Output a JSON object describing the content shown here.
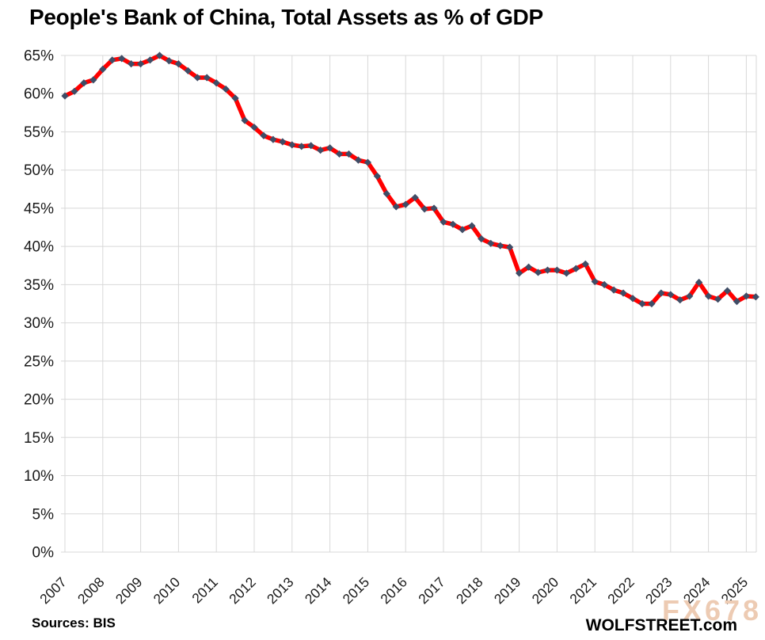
{
  "title": "People's Bank of China, Total Assets as % of GDP",
  "footer": {
    "sources": "Sources: BIS",
    "brand": "WOLFSTREET.com",
    "watermark": "FX678"
  },
  "colors": {
    "line": "#FF0000",
    "marker": "#3F4D66",
    "grid": "#D8D8D8",
    "axis_text": "#1A1A1A",
    "watermark": "#EDCBB3"
  },
  "chart_data": {
    "type": "line",
    "title": "People's Bank of China, Total Assets as % of GDP",
    "x_frequency": "quarterly",
    "x_start": "2007Q1",
    "x_end": "2025Q2",
    "x_tick_years": [
      "2007",
      "2008",
      "2009",
      "2010",
      "2011",
      "2012",
      "2013",
      "2014",
      "2015",
      "2016",
      "2017",
      "2018",
      "2019",
      "2020",
      "2021",
      "2022",
      "2023",
      "2024",
      "2025"
    ],
    "y_ticks": [
      "0%",
      "5%",
      "10%",
      "15%",
      "20%",
      "25%",
      "30%",
      "35%",
      "40%",
      "45%",
      "50%",
      "55%",
      "60%",
      "65%"
    ],
    "ylim": [
      0,
      65
    ],
    "grid": true,
    "legend_position": "none",
    "series": [
      {
        "name": "PBOC total assets as % of GDP",
        "color": "#FF0000",
        "marker": "diamond",
        "marker_color": "#3F4D66",
        "values": [
          59.7,
          60.3,
          61.4,
          61.8,
          63.2,
          64.4,
          64.6,
          63.9,
          63.9,
          64.4,
          65.0,
          64.3,
          63.9,
          63.0,
          62.1,
          62.1,
          61.4,
          60.6,
          59.4,
          56.5,
          55.6,
          54.5,
          54.0,
          53.7,
          53.3,
          53.1,
          53.2,
          52.6,
          52.9,
          52.1,
          52.1,
          51.3,
          51.0,
          49.2,
          46.9,
          45.2,
          45.5,
          46.4,
          44.9,
          45.0,
          43.2,
          42.9,
          42.2,
          42.7,
          41.0,
          40.4,
          40.1,
          39.9,
          36.5,
          37.3,
          36.6,
          36.9,
          36.9,
          36.5,
          37.1,
          37.7,
          35.4,
          35.0,
          34.3,
          33.9,
          33.2,
          32.5,
          32.5,
          33.9,
          33.7,
          33.0,
          33.5,
          35.3,
          33.5,
          33.1,
          34.2,
          32.8,
          33.5,
          33.4
        ]
      }
    ]
  }
}
